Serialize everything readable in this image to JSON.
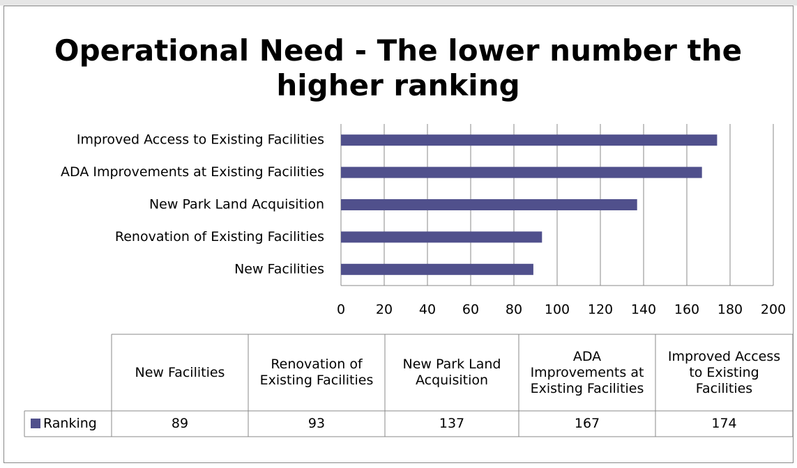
{
  "chart_data": {
    "type": "hbar",
    "title": "Operational Need - The lower number the higher ranking",
    "categories": [
      "New Facilities",
      "Renovation of Existing Facilities",
      "New Park Land Acquisition",
      "ADA Improvements at Existing Facilities",
      "Improved Access to Existing Facilities"
    ],
    "series": [
      {
        "name": "Ranking",
        "color": "#50508c",
        "values": [
          89,
          93,
          137,
          167,
          174
        ]
      }
    ],
    "xlim": [
      0,
      200
    ],
    "xticks": [
      0,
      20,
      40,
      60,
      80,
      100,
      120,
      140,
      160,
      180,
      200
    ],
    "grid": true,
    "data_table": true
  }
}
